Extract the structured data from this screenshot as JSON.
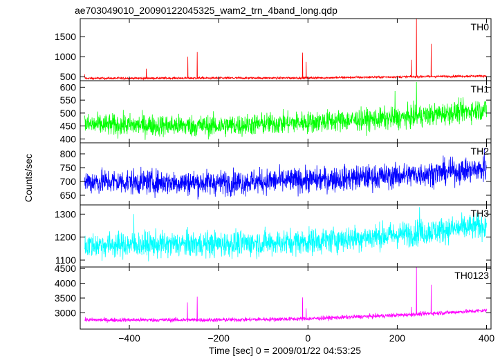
{
  "title": "ae703049010_20090122045325_wam2_trn_4band_long.qdp",
  "ylabel": "Counts/sec",
  "xlabel": "Time [sec] 0 = 2009/01/22 04:53:25",
  "chart_data": {
    "type": "line",
    "title": "ae703049010_20090122045325_wam2_trn_4band_long.qdp",
    "xlabel": "Time [sec] 0 = 2009/01/22 04:53:25",
    "ylabel": "Counts/sec",
    "xlim": [
      -510,
      410
    ],
    "xticks": [
      -400,
      -200,
      0,
      200,
      400
    ],
    "grid": false,
    "panels": [
      {
        "name": "TH0",
        "color": "#ff0000",
        "ylim": [
          400,
          1950
        ],
        "yticks": [
          500,
          1000,
          1500
        ],
        "baseline": [
          [
            -500,
            460
          ],
          [
            0,
            470
          ],
          [
            400,
            520
          ]
        ],
        "noise": 20,
        "spikes": [
          [
            -500,
            560
          ],
          [
            -362,
            700
          ],
          [
            -269,
            1000
          ],
          [
            -248,
            1120
          ],
          [
            -12,
            1100
          ],
          [
            -4,
            870
          ],
          [
            232,
            920
          ],
          [
            243,
            1950
          ],
          [
            276,
            1320
          ]
        ]
      },
      {
        "name": "TH1",
        "color": "#00ff00",
        "ylim": [
          385,
          625
        ],
        "yticks": [
          400,
          450,
          500,
          550,
          600
        ],
        "baseline": [
          [
            -500,
            455
          ],
          [
            -200,
            450
          ],
          [
            0,
            465
          ],
          [
            200,
            480
          ],
          [
            400,
            515
          ]
        ],
        "noise": 30,
        "spikes": [
          [
            243,
            620
          ],
          [
            195,
            585
          ]
        ]
      },
      {
        "name": "TH2",
        "color": "#0000ff",
        "ylim": [
          615,
          840
        ],
        "yticks": [
          650,
          700,
          750,
          800
        ],
        "baseline": [
          [
            -500,
            700
          ],
          [
            -200,
            695
          ],
          [
            0,
            705
          ],
          [
            200,
            720
          ],
          [
            400,
            745
          ]
        ],
        "noise": 32,
        "spikes": [
          [
            395,
            820
          ]
        ]
      },
      {
        "name": "TH3",
        "color": "#00ffff",
        "ylim": [
          1070,
          1340
        ],
        "yticks": [
          1100,
          1200,
          1300
        ],
        "baseline": [
          [
            -500,
            1165
          ],
          [
            -200,
            1170
          ],
          [
            0,
            1180
          ],
          [
            200,
            1210
          ],
          [
            400,
            1250
          ]
        ],
        "noise": 40,
        "spikes": [
          [
            250,
            1330
          ],
          [
            -390,
            1300
          ]
        ]
      },
      {
        "name": "TH0123",
        "color": "#ff00ff",
        "ylim": [
          2450,
          4550
        ],
        "yticks": [
          3000,
          3500,
          4000,
          4500
        ],
        "baseline": [
          [
            -500,
            2760
          ],
          [
            -200,
            2760
          ],
          [
            0,
            2800
          ],
          [
            200,
            2920
          ],
          [
            400,
            3080
          ]
        ],
        "noise": 50,
        "spikes": [
          [
            -270,
            3350
          ],
          [
            -248,
            3550
          ],
          [
            -12,
            3520
          ],
          [
            -4,
            3150
          ],
          [
            232,
            3200
          ],
          [
            243,
            4550
          ],
          [
            276,
            3950
          ]
        ]
      }
    ]
  }
}
